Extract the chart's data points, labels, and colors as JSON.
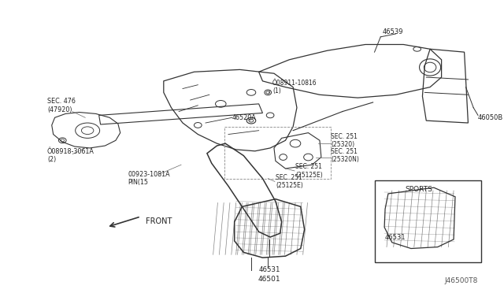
{
  "bg_color": "#ffffff",
  "line_color": "#333333",
  "part_color": "#555555",
  "label_color": "#222222",
  "fig_width": 6.4,
  "fig_height": 3.72,
  "watermark": "J46500T8",
  "labels": {
    "sec476": "SEC. 476\n(47920)",
    "08918": "Ô08918-3061A\n(2)",
    "00923": "00923-1081A\nPIN(15",
    "08911": "Ô08911-10816\n(1)",
    "46520A": "46520A",
    "46539": "46539",
    "46050B": "46050B",
    "sec251_1": "SEC. 251\n(25320)",
    "sec251_2": "SEC. 251\n(25320N)",
    "sec251_3": "SEC. 251\n(25125E)",
    "sec251_4": "SEC. 251\n(25125E)",
    "46531": "46531",
    "46501": "46501",
    "sports": "SPORTS",
    "46531b": "46531",
    "front": "FRONT"
  }
}
